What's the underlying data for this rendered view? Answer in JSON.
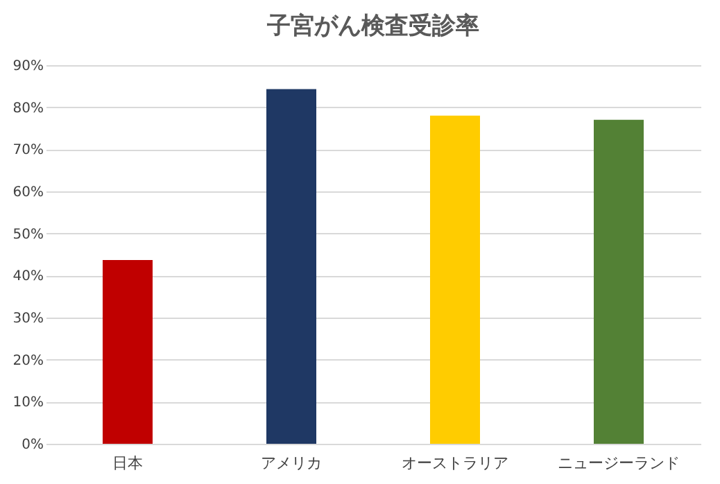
{
  "chart_data": {
    "type": "bar",
    "title": "子宮がん検査受診率",
    "categories": [
      "日本",
      "アメリカ",
      "オーストラリア",
      "ニュージーランド"
    ],
    "values": [
      43.7,
      84.3,
      78.0,
      77.0
    ],
    "colors": [
      "#c00000",
      "#1f3864",
      "#ffcc00",
      "#538135"
    ],
    "ylim": [
      0,
      90
    ],
    "yticks": [
      {
        "value": 0,
        "label": "0%"
      },
      {
        "value": 10,
        "label": "10%"
      },
      {
        "value": 20,
        "label": "20%"
      },
      {
        "value": 30,
        "label": "30%"
      },
      {
        "value": 40,
        "label": "40%"
      },
      {
        "value": 50,
        "label": "50%"
      },
      {
        "value": 60,
        "label": "60%"
      },
      {
        "value": 70,
        "label": "70%"
      },
      {
        "value": 80,
        "label": "80%"
      },
      {
        "value": 90,
        "label": "90%"
      }
    ],
    "grid": "y",
    "legend": false
  }
}
